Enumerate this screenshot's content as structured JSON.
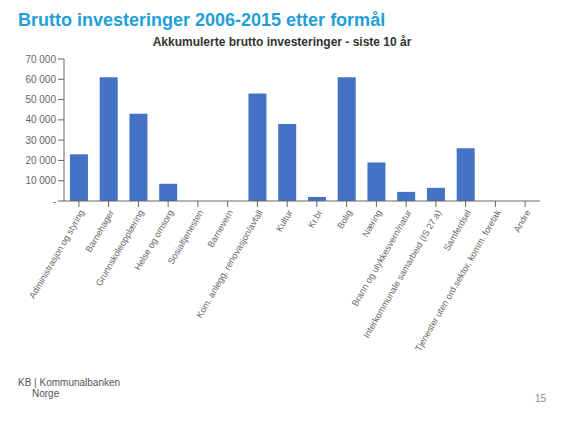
{
  "chart_data": {
    "type": "bar",
    "title": "Brutto investeringer  2006-2015 etter formål",
    "subtitle": "Akkumulerte brutto investeringer - siste 10 år",
    "categories": [
      "Administrasjon og styring",
      "Barnehager",
      "Grunnskoleopplæring",
      "Helse og omsorg",
      "Sosialtjenesten",
      "Barnevern",
      "Kom. anlegg, renovasjon/avfall",
      "Kultur",
      "Kr.br",
      "Bolig",
      "Næring",
      "Brann og ulykkesvern/natur",
      "Interkommunale samarbeid (IS 27.a)",
      "Samferdsel",
      "Tjenester uten ord.sektor, komm. foretak",
      "Andre"
    ],
    "values": [
      23000,
      61000,
      43000,
      8500,
      0,
      0,
      53000,
      38000,
      2000,
      61000,
      19000,
      4500,
      6500,
      26000,
      0,
      0
    ],
    "color": "#4472C4",
    "ylim": [
      0,
      70000
    ],
    "yticks": [
      {
        "value": 0,
        "label": "-"
      },
      {
        "value": 10000,
        "label": "10 000"
      },
      {
        "value": 20000,
        "label": "20 000"
      },
      {
        "value": 30000,
        "label": "30 000"
      },
      {
        "value": 40000,
        "label": "40 000"
      },
      {
        "value": 50000,
        "label": "50 000"
      },
      {
        "value": 60000,
        "label": "60 000"
      },
      {
        "value": 70000,
        "label": "70 000"
      }
    ],
    "grid": false,
    "annotations": [
      "KB | Kommunalbanken",
      "Norge",
      "15"
    ]
  }
}
